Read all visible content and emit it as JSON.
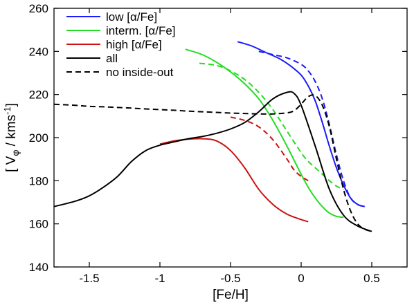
{
  "chart_data": {
    "type": "line",
    "xlabel": "[Fe/H]",
    "ylabel": {
      "v": "V",
      "sub": "φ",
      "unit": " / kms",
      "sup": "-1"
    },
    "xlim": [
      -1.75,
      0.75
    ],
    "ylim": [
      140,
      260
    ],
    "xticks": [
      -1.5,
      -1.0,
      -0.5,
      0.0,
      0.5
    ],
    "xtick_labels": [
      "-1.5",
      "-1",
      "-0.5",
      "0",
      "0.5"
    ],
    "yticks": [
      140,
      160,
      180,
      200,
      220,
      240,
      260
    ],
    "ytick_labels": [
      "140",
      "160",
      "180",
      "200",
      "220",
      "240",
      "260"
    ],
    "legend_position": "top-left",
    "legend": [
      {
        "label": "low [α/Fe]",
        "color": "#1a1aff",
        "dash": false
      },
      {
        "label": "interm. [α/Fe]",
        "color": "#22dd22",
        "dash": false
      },
      {
        "label": "high [α/Fe]",
        "color": "#cc1111",
        "dash": false
      },
      {
        "label": "all",
        "color": "#000000",
        "dash": false
      },
      {
        "label": "no inside-out",
        "color": "#000000",
        "dash": true
      }
    ],
    "series": [
      {
        "group": "low",
        "color": "#1a1aff",
        "dash": false,
        "x": [
          -0.45,
          -0.35,
          -0.25,
          -0.15,
          -0.08,
          0.0,
          0.05,
          0.1,
          0.15,
          0.2,
          0.25,
          0.3,
          0.35,
          0.4,
          0.45
        ],
        "y": [
          244.5,
          242.5,
          239.5,
          236.5,
          233.5,
          229,
          224,
          217,
          207,
          196,
          186,
          178,
          172,
          169,
          168
        ]
      },
      {
        "group": "low",
        "color": "#1a1aff",
        "dash": true,
        "x": [
          -0.3,
          -0.2,
          -0.1,
          0.0,
          0.05,
          0.1,
          0.15,
          0.2,
          0.25,
          0.3,
          0.35,
          0.4,
          0.45
        ],
        "y": [
          240,
          238.5,
          237,
          234,
          231,
          226,
          218,
          206,
          192,
          180,
          172,
          169,
          168
        ]
      },
      {
        "group": "interm",
        "color": "#22dd22",
        "dash": false,
        "x": [
          -0.82,
          -0.7,
          -0.6,
          -0.5,
          -0.4,
          -0.3,
          -0.2,
          -0.1,
          0.0,
          0.05,
          0.1,
          0.15,
          0.2,
          0.25,
          0.3
        ],
        "y": [
          241,
          238.5,
          235,
          230.5,
          225,
          218,
          208,
          196,
          183,
          177,
          172,
          168,
          165,
          163.5,
          163
        ]
      },
      {
        "group": "interm",
        "color": "#22dd22",
        "dash": true,
        "x": [
          -0.72,
          -0.6,
          -0.5,
          -0.4,
          -0.3,
          -0.2,
          -0.1,
          0.0,
          0.05,
          0.1,
          0.15,
          0.2,
          0.25,
          0.3
        ],
        "y": [
          234.5,
          233.5,
          231,
          227,
          221,
          213,
          203,
          193,
          189,
          186,
          183,
          180,
          177.5,
          176
        ]
      },
      {
        "group": "high",
        "color": "#cc1111",
        "dash": false,
        "x": [
          -1.0,
          -0.9,
          -0.8,
          -0.7,
          -0.6,
          -0.5,
          -0.4,
          -0.3,
          -0.2,
          -0.1,
          0.0,
          0.05
        ],
        "y": [
          197,
          198.5,
          199.3,
          199.5,
          198.5,
          194,
          186,
          176,
          169,
          164.5,
          162,
          161
        ]
      },
      {
        "group": "high",
        "color": "#cc1111",
        "dash": true,
        "x": [
          -0.5,
          -0.4,
          -0.3,
          -0.2,
          -0.1,
          -0.05,
          0.0,
          0.05
        ],
        "y": [
          209.5,
          208,
          205,
          199,
          190,
          185,
          182,
          180
        ]
      },
      {
        "group": "all",
        "color": "#000000",
        "dash": false,
        "x": [
          -1.75,
          -1.6,
          -1.5,
          -1.4,
          -1.3,
          -1.2,
          -1.1,
          -1.0,
          -0.9,
          -0.8,
          -0.7,
          -0.6,
          -0.5,
          -0.4,
          -0.3,
          -0.2,
          -0.1,
          -0.05,
          0.0,
          0.1,
          0.2,
          0.3,
          0.4,
          0.5
        ],
        "y": [
          168,
          170.5,
          173,
          177,
          182,
          189,
          194,
          196.5,
          198,
          199.5,
          200.5,
          202,
          204,
          207,
          212,
          218,
          221,
          220.5,
          215,
          196,
          176,
          164,
          159,
          156.5
        ]
      },
      {
        "group": "all",
        "color": "#000000",
        "dash": true,
        "x": [
          -1.75,
          -1.6,
          -1.5,
          -1.4,
          -1.3,
          -1.2,
          -1.1,
          -1.0,
          -0.9,
          -0.8,
          -0.7,
          -0.6,
          -0.5,
          -0.4,
          -0.3,
          -0.2,
          -0.1,
          -0.05,
          0.0,
          0.05,
          0.1,
          0.15,
          0.2,
          0.25,
          0.3,
          0.35,
          0.4,
          0.45,
          0.5
        ],
        "y": [
          215.5,
          215,
          214.5,
          214.3,
          214,
          213.7,
          213.3,
          213,
          212.7,
          212.3,
          212,
          211.7,
          211.4,
          211.2,
          211,
          211,
          211.5,
          212.5,
          215.5,
          219,
          219.5,
          215,
          205,
          190,
          176,
          166,
          160,
          157.5,
          156.5
        ]
      }
    ]
  }
}
